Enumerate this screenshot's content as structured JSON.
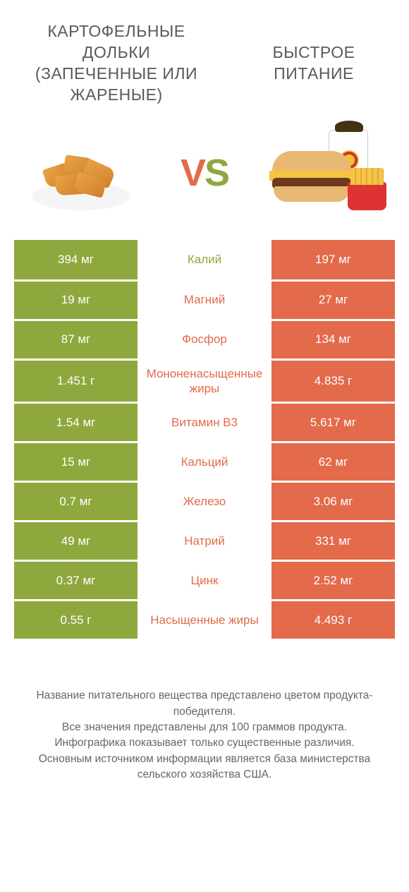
{
  "colors": {
    "green": "#8fa83e",
    "orange": "#e36a4a",
    "text": "#5a5a5a"
  },
  "header": {
    "left_title": "КАРТОФЕЛЬНЫЕ ДОЛЬКИ (ЗАПЕЧЕННЫЕ ИЛИ ЖАРЕНЫЕ)",
    "right_title": "БЫСТРОЕ ПИТАНИЕ",
    "vs_v": "V",
    "vs_s": "S"
  },
  "rows": [
    {
      "label": "Калий",
      "left": "394 мг",
      "right": "197 мг",
      "winner": "left"
    },
    {
      "label": "Магний",
      "left": "19 мг",
      "right": "27 мг",
      "winner": "right"
    },
    {
      "label": "Фосфор",
      "left": "87 мг",
      "right": "134 мг",
      "winner": "right"
    },
    {
      "label": "Мононенасыщенные жиры",
      "left": "1.451 г",
      "right": "4.835 г",
      "winner": "right"
    },
    {
      "label": "Витамин B3",
      "left": "1.54 мг",
      "right": "5.617 мг",
      "winner": "right"
    },
    {
      "label": "Кальций",
      "left": "15 мг",
      "right": "62 мг",
      "winner": "right"
    },
    {
      "label": "Железо",
      "left": "0.7 мг",
      "right": "3.06 мг",
      "winner": "right"
    },
    {
      "label": "Натрий",
      "left": "49 мг",
      "right": "331 мг",
      "winner": "right"
    },
    {
      "label": "Цинк",
      "left": "0.37 мг",
      "right": "2.52 мг",
      "winner": "right"
    },
    {
      "label": "Насыщенные жиры",
      "left": "0.55 г",
      "right": "4.493 г",
      "winner": "right"
    }
  ],
  "footer": {
    "line1": "Название питательного вещества представлено цветом продукта-победителя.",
    "line2": "Все значения представлены для 100 граммов продукта.",
    "line3": "Инфографика показывает только существенные различия.",
    "line4": "Основным источником информации является база министерства сельского хозяйства США."
  }
}
